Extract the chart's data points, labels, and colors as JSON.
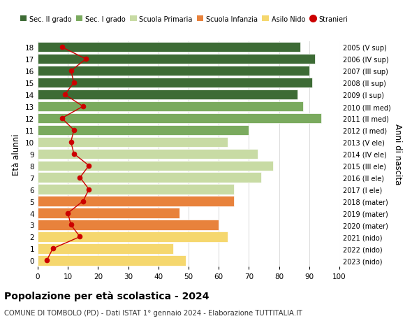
{
  "ages": [
    0,
    1,
    2,
    3,
    4,
    5,
    6,
    7,
    8,
    9,
    10,
    11,
    12,
    13,
    14,
    15,
    16,
    17,
    18
  ],
  "anni_nascita": [
    "2023 (nido)",
    "2022 (nido)",
    "2021 (nido)",
    "2020 (mater)",
    "2019 (mater)",
    "2018 (mater)",
    "2017 (I ele)",
    "2016 (II ele)",
    "2015 (III ele)",
    "2014 (IV ele)",
    "2013 (V ele)",
    "2012 (I med)",
    "2011 (II med)",
    "2010 (III med)",
    "2009 (I sup)",
    "2008 (II sup)",
    "2007 (III sup)",
    "2006 (IV sup)",
    "2005 (V sup)"
  ],
  "bar_values": [
    49,
    45,
    63,
    60,
    47,
    65,
    65,
    74,
    78,
    73,
    63,
    70,
    94,
    88,
    86,
    91,
    90,
    92,
    87
  ],
  "bar_colors": [
    "#f5d76e",
    "#f5d76e",
    "#f5d76e",
    "#e8823c",
    "#e8823c",
    "#e8823c",
    "#c8dba4",
    "#c8dba4",
    "#c8dba4",
    "#c8dba4",
    "#c8dba4",
    "#7aaa5e",
    "#7aaa5e",
    "#7aaa5e",
    "#3d6b35",
    "#3d6b35",
    "#3d6b35",
    "#3d6b35",
    "#3d6b35"
  ],
  "stranieri": [
    3,
    5,
    14,
    11,
    10,
    15,
    17,
    14,
    17,
    12,
    11,
    12,
    8,
    15,
    9,
    12,
    11,
    16,
    8
  ],
  "xlim": [
    0,
    100
  ],
  "ylim": [
    -0.5,
    18.5
  ],
  "xlabel_ticks": [
    0,
    10,
    20,
    30,
    40,
    50,
    60,
    70,
    80,
    90,
    100
  ],
  "ylabel_left": "Età alunni",
  "ylabel_right": "Anni di nascita",
  "title_bold": "Popolazione per età scolastica - 2024",
  "subtitle": "COMUNE DI TOMBOLO (PD) - Dati ISTAT 1° gennaio 2024 - Elaborazione TUTTITALIA.IT",
  "legend_labels": [
    "Sec. II grado",
    "Sec. I grado",
    "Scuola Primaria",
    "Scuola Infanzia",
    "Asilo Nido",
    "Stranieri"
  ],
  "legend_colors": [
    "#3d6b35",
    "#7aaa5e",
    "#c8dba4",
    "#e8823c",
    "#f5d76e",
    "#cc0000"
  ],
  "stranieri_color": "#cc0000",
  "grid_color": "#dddddd",
  "bg_color": "#ffffff",
  "bar_height": 0.85
}
